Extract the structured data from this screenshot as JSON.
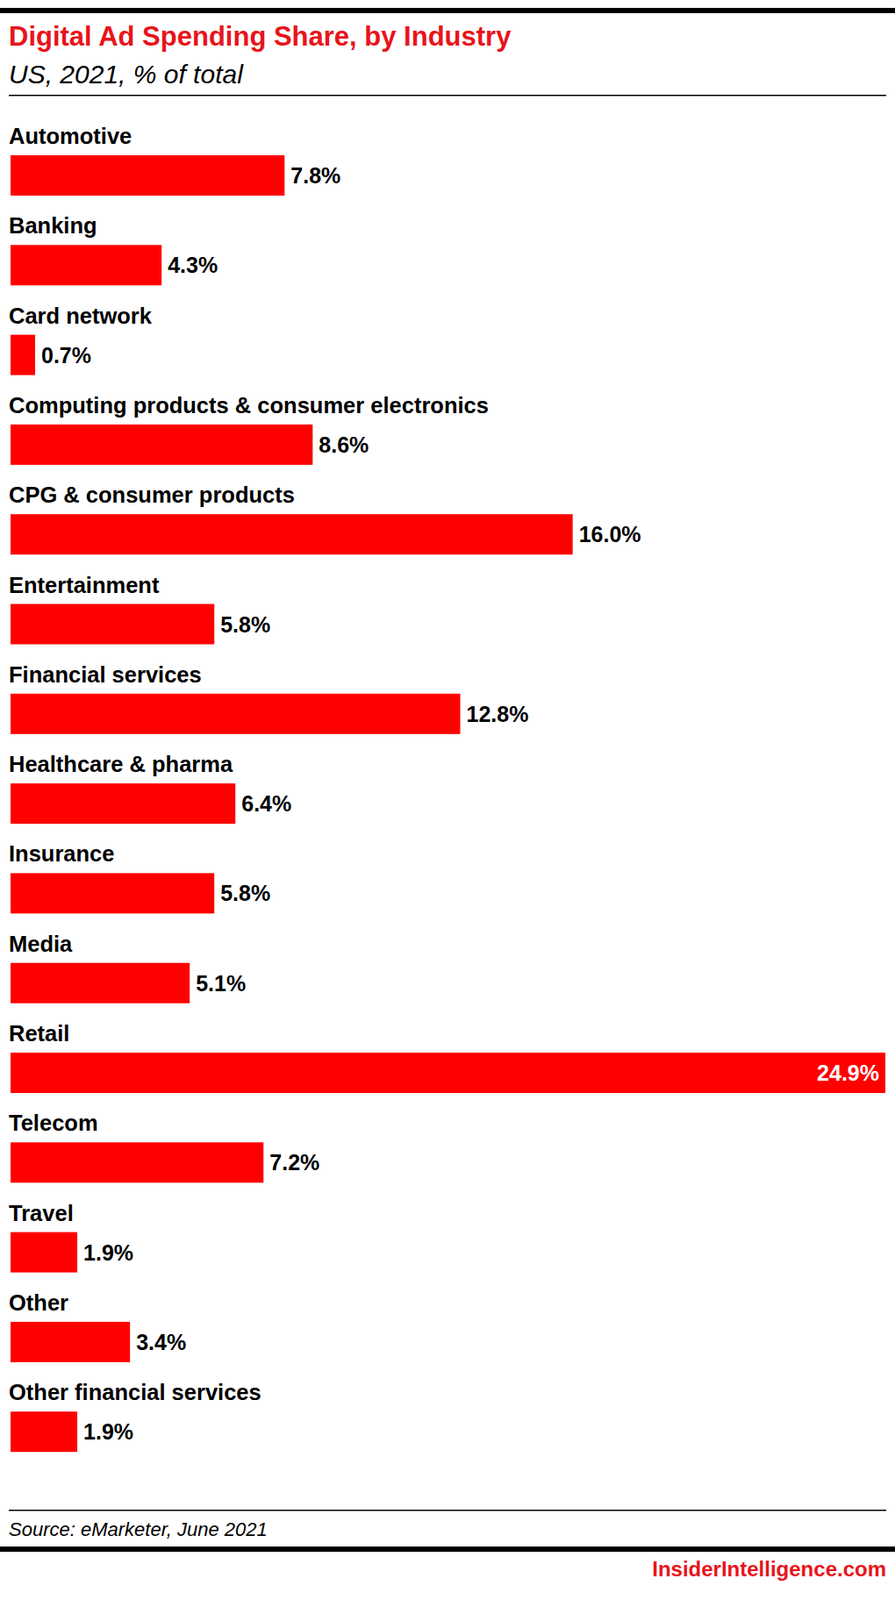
{
  "chart_data": {
    "type": "bar",
    "title": "Digital Ad Spending Share, by Industry",
    "subtitle": "US, 2021, % of total",
    "source": "Source: eMarketer, June 2021",
    "credit": "InsiderIntelligence.com",
    "orientation": "horizontal",
    "categories": [
      "Automotive",
      "Banking",
      "Card network",
      "Computing products & consumer electronics",
      "CPG & consumer products",
      "Entertainment",
      "Financial services",
      "Healthcare & pharma",
      "Insurance",
      "Media",
      "Retail",
      "Telecom",
      "Travel",
      "Other",
      "Other financial services"
    ],
    "values": [
      7.8,
      4.3,
      0.7,
      8.6,
      16.0,
      5.8,
      12.8,
      6.4,
      5.8,
      5.1,
      24.9,
      7.2,
      1.9,
      3.4,
      1.9
    ],
    "value_labels": [
      "7.8%",
      "4.3%",
      "0.7%",
      "8.6%",
      "16.0%",
      "5.8%",
      "12.8%",
      "6.4%",
      "5.8%",
      "5.1%",
      "24.9%",
      "7.2%",
      "1.9%",
      "3.4%",
      "1.9%"
    ],
    "color": "#ff0000",
    "xlim": [
      0,
      24.9
    ],
    "data_labels": true,
    "tick_labels": false,
    "grid": false
  }
}
